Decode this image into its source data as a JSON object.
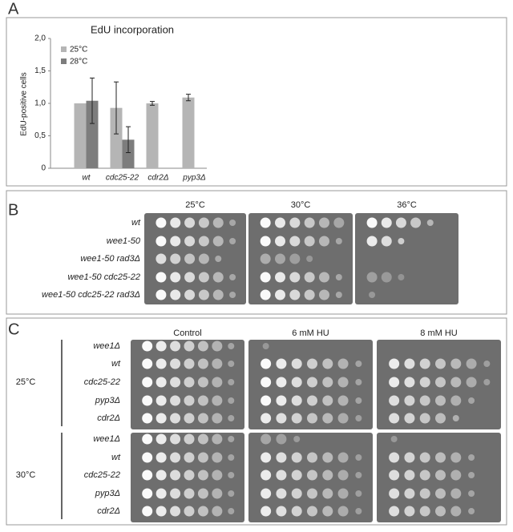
{
  "panel_a": {
    "label": "A"
  },
  "chart_data": {
    "type": "bar",
    "title": "EdU incorporation",
    "y_label": "EdU-positive cells",
    "categories": [
      "wt",
      "cdc25-22",
      "cdr2Δ",
      "pyp3Δ"
    ],
    "series": [
      {
        "name": "25°C",
        "color": "#b5b5b5",
        "values": [
          1.0,
          0.93,
          1.0,
          1.09
        ],
        "errors": [
          null,
          0.4,
          0.03,
          0.05
        ]
      },
      {
        "name": "28°C",
        "color": "#7d7d7d",
        "values": [
          1.04,
          0.44,
          null,
          null
        ],
        "errors": [
          0.35,
          0.2,
          null,
          null
        ]
      }
    ],
    "ylim": [
      0,
      2
    ],
    "yticks": [
      0,
      {
        "value": 0.5,
        "label": "0,5"
      },
      {
        "value": 1,
        "label": "1,0"
      },
      {
        "value": 1.5,
        "label": "1,5"
      },
      {
        "value": 2,
        "label": "2,0"
      }
    ]
  },
  "panel_b": {
    "label": "B",
    "conditions": [
      "25°C",
      "30°C",
      "36°C"
    ],
    "strains": [
      "wt",
      "wee1-50",
      "wee1-50 rad3Δ",
      "wee1-50 cdc25-22",
      "wee1-50 cdc25-22 rad3Δ"
    ]
  },
  "panel_c": {
    "label": "C",
    "conditions": [
      "Control",
      "6 mM HU",
      "8 mM HU"
    ],
    "groups": [
      {
        "temperature": "25°C",
        "strains": [
          "wee1Δ",
          "wt",
          "cdc25-22",
          "pyp3Δ",
          "cdr2Δ"
        ]
      },
      {
        "temperature": "30°C",
        "strains": [
          "wee1Δ",
          "wt",
          "cdc25-22",
          "pyp3Δ",
          "cdr2Δ"
        ]
      }
    ]
  }
}
